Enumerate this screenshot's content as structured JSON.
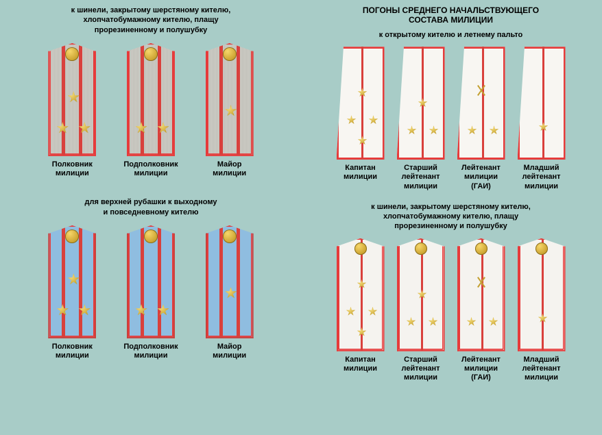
{
  "colors": {
    "bg": "#a8ccc7",
    "red": "#e63b3b",
    "gold": "#caa22f",
    "grey": "#d0cfc9",
    "blue": "#8fbde0",
    "white": "#f8f6f2"
  },
  "left": {
    "header1": "к шинели, закрытому шерстяному кителю,\nхлопчатобумажному кителю, плащу\nпрорезиненному и полушубку",
    "senior": [
      {
        "rank": "Полковник\nмилиции",
        "stars": 3
      },
      {
        "rank": "Подполковник\nмилиции",
        "stars": 2
      },
      {
        "rank": "Майор\nмилиции",
        "stars": 1
      }
    ],
    "header2": "для верхней рубашки к выходному\nи повседневному кителю",
    "senior_blue": [
      {
        "rank": "Полковник\nмилиции",
        "stars": 3
      },
      {
        "rank": "Подполковник\nмилиции",
        "stars": 2
      },
      {
        "rank": "Майор\nмилиции",
        "stars": 1
      }
    ]
  },
  "right": {
    "title": "ПОГОНЫ СРЕДНЕГО НАЧАЛЬСТВУЮЩЕГО\nСОСТАВА МИЛИЦИИ",
    "header1": "к открытому кителю и летнему пальто",
    "mid_trap": [
      {
        "rank": "Капитан\nмилиции",
        "stars": 4,
        "emblem": false
      },
      {
        "rank": "Старший\nлейтенант\nмилиции",
        "stars": 3,
        "emblem": false
      },
      {
        "rank": "Лейтенант\nмилиции\n(ГАИ)",
        "stars": 2,
        "emblem": true
      },
      {
        "rank": "Младший\nлейтенант\nмилиции",
        "stars": 1,
        "emblem": false
      }
    ],
    "header2": "к шинели, закрытому шерстяному кителю,\nхлопчатобумажному кителю, плащу\nпрорезиненному и полушубку",
    "mid_hex": [
      {
        "rank": "Капитан\nмилиции",
        "stars": 4,
        "emblem": false
      },
      {
        "rank": "Старший\nлейтенант\nмилиции",
        "stars": 3,
        "emblem": false
      },
      {
        "rank": "Лейтенант\nмилиции\n(ГАИ)",
        "stars": 2,
        "emblem": true
      },
      {
        "rank": "Младший\nлейтенант\nмилиции",
        "stars": 1,
        "emblem": false
      }
    ]
  }
}
